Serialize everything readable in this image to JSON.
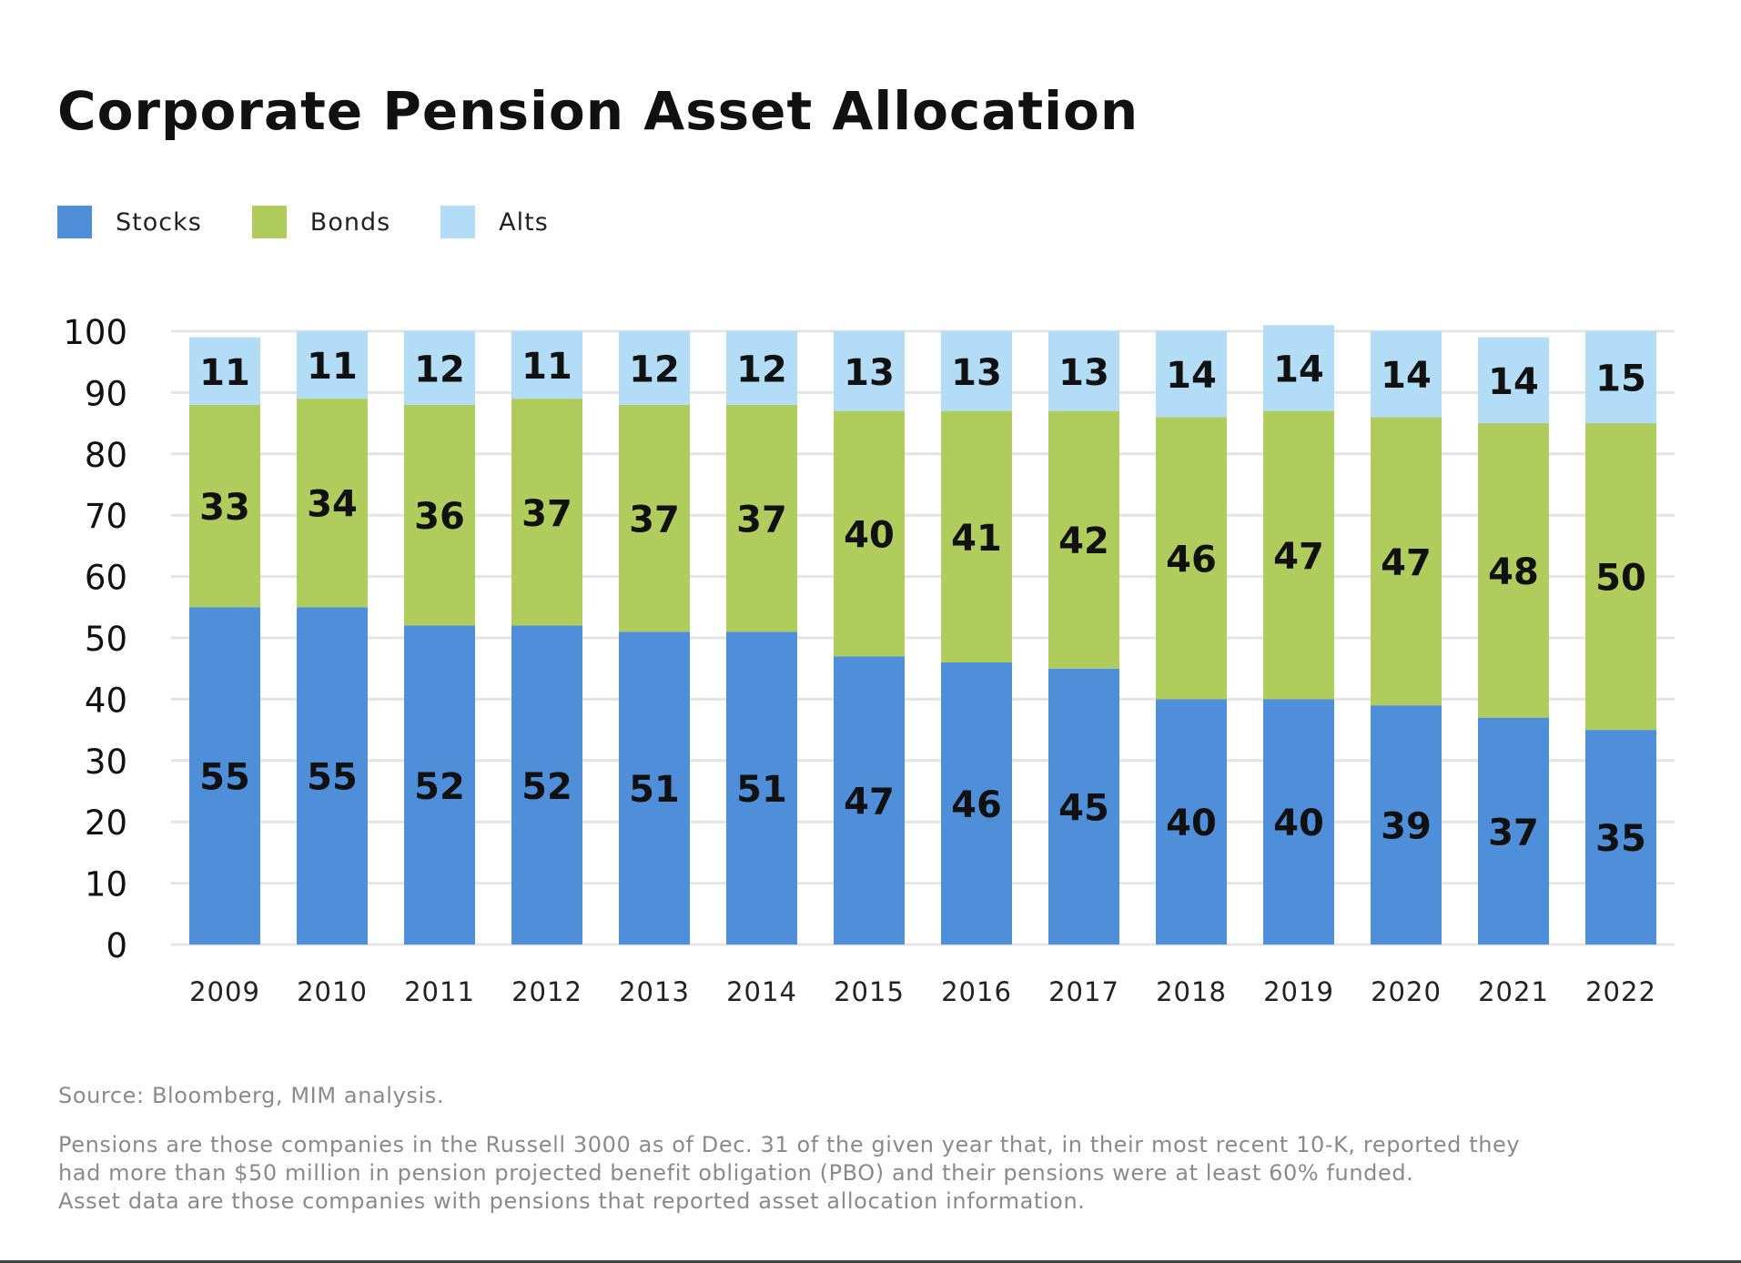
{
  "chart_data": {
    "type": "bar",
    "stacked": true,
    "title": "Corporate Pension Asset Allocation",
    "xlabel": "",
    "ylabel": "",
    "ylim": [
      0,
      100
    ],
    "yticks": [
      0,
      10,
      20,
      30,
      40,
      50,
      60,
      70,
      80,
      90,
      100
    ],
    "grid": true,
    "legend_position": "top-left",
    "categories": [
      "2009",
      "2010",
      "2011",
      "2012",
      "2013",
      "2014",
      "2015",
      "2016",
      "2017",
      "2018",
      "2019",
      "2020",
      "2021",
      "2022"
    ],
    "series": [
      {
        "name": "Stocks",
        "color": "#4f8fd9",
        "values": [
          55,
          55,
          52,
          52,
          51,
          51,
          47,
          46,
          45,
          40,
          40,
          39,
          37,
          35
        ]
      },
      {
        "name": "Bonds",
        "color": "#b0cc5c",
        "values": [
          33,
          34,
          36,
          37,
          37,
          37,
          40,
          41,
          42,
          46,
          47,
          47,
          48,
          50
        ]
      },
      {
        "name": "Alts",
        "color": "#b3dcf7",
        "values": [
          11,
          11,
          12,
          11,
          12,
          12,
          13,
          13,
          13,
          14,
          14,
          14,
          14,
          15
        ]
      }
    ]
  },
  "footer": {
    "source": "Source: Bloomberg, MIM analysis.",
    "notes": [
      "Pensions are those companies in the Russell 3000 as of Dec. 31 of the given year that, in their most recent 10-K, reported they",
      "had more than $50 million in pension projected benefit obligation (PBO) and their pensions were at least 60% funded.",
      "Asset data are those companies with pensions that reported asset allocation information."
    ]
  }
}
